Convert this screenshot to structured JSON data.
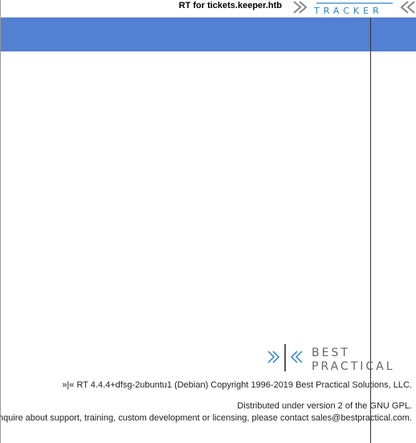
{
  "header": {
    "title": "RT for tickets.keeper.htb"
  },
  "footer": {
    "version": "»|« RT 4.4.4+dfsg-2ubuntu1 (Debian) Copyright 1996-2019 Best Practical Solutions, LLC.",
    "license": "Distributed under version 2 of the GNU GPL.",
    "contact": "To inquire about support, training, custom development or licensing, please contact sales@bestpractical.com."
  }
}
